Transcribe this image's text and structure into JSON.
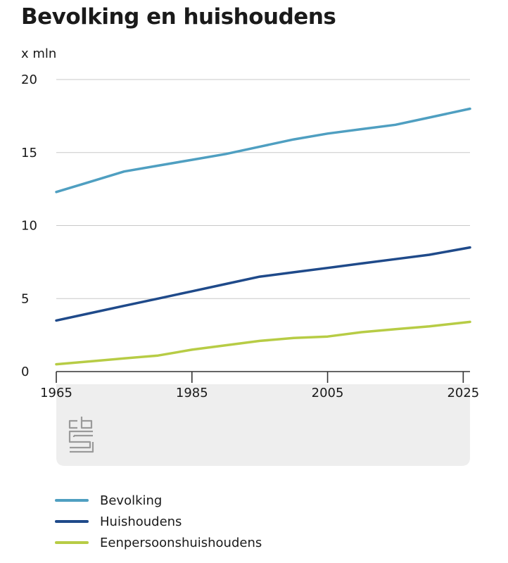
{
  "title": "Bevolking en huishoudens",
  "unit_label": "x mln",
  "logo": {
    "icon": "cbs-logo-icon",
    "text": "cbs"
  },
  "colors": {
    "axis": "#333333",
    "grid": "#c8c8c8",
    "logo_box": "#eeeeee",
    "logo": "#9a9a9a"
  },
  "chart_data": {
    "type": "line",
    "title": "Bevolking en huishoudens",
    "ylabel": "x mln",
    "xlim": [
      1965,
      2026
    ],
    "ylim": [
      0,
      20
    ],
    "yticks": [
      0,
      5,
      10,
      15,
      20
    ],
    "xticks": [
      1965,
      1985,
      2005,
      2025
    ],
    "grid": true,
    "legend": "bottom",
    "x": [
      1965,
      1970,
      1975,
      1980,
      1985,
      1990,
      1995,
      2000,
      2005,
      2010,
      2015,
      2020,
      2026
    ],
    "series": [
      {
        "name": "Bevolking",
        "color": "#4f9fc1",
        "values": [
          12.3,
          13.0,
          13.7,
          14.1,
          14.5,
          14.9,
          15.4,
          15.9,
          16.3,
          16.6,
          16.9,
          17.4,
          18.0
        ]
      },
      {
        "name": "Huishoudens",
        "color": "#1f4a8a",
        "values": [
          3.5,
          4.0,
          4.5,
          5.0,
          5.5,
          6.0,
          6.5,
          6.8,
          7.1,
          7.4,
          7.7,
          8.0,
          8.5
        ]
      },
      {
        "name": "Eenpersoonshuishoudens",
        "color": "#b7cc45",
        "values": [
          0.5,
          0.7,
          0.9,
          1.1,
          1.5,
          1.8,
          2.1,
          2.3,
          2.4,
          2.7,
          2.9,
          3.1,
          3.4
        ]
      }
    ]
  }
}
